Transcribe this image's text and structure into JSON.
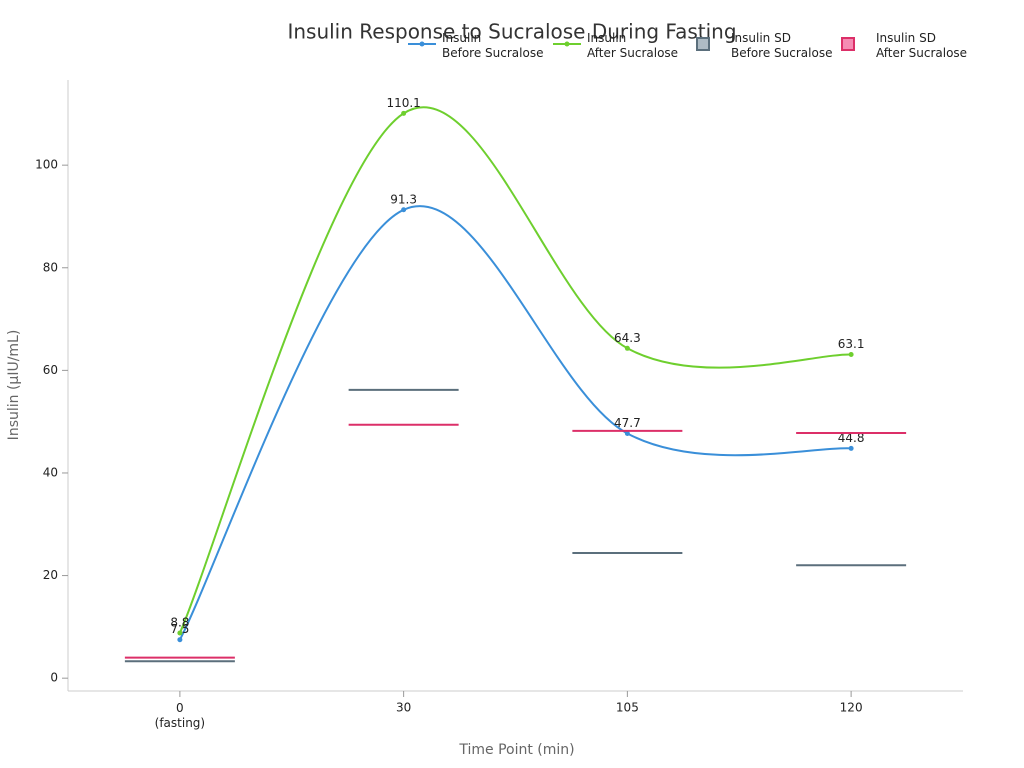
{
  "chart_data": {
    "type": "line",
    "title": "Insulin Response to Sucralose During Fasting",
    "x_label": "Time Point (min)",
    "y_label": "Insulin (µIU/mL)",
    "categories": [
      "0\n(fasting)",
      "30",
      "105",
      "120"
    ],
    "ylim": [
      -2.5,
      116.6
    ],
    "yticks": [
      0,
      20,
      40,
      60,
      80,
      100
    ],
    "series": [
      {
        "name": "Insulin\nBefore Sucralose",
        "type": "line",
        "color": "#3a8fd9",
        "values": [
          7.5,
          91.3,
          47.7,
          44.8
        ]
      },
      {
        "name": "Insulin\nAfter Sucralose",
        "type": "line",
        "color": "#6ecf2e",
        "values": [
          8.8,
          110.1,
          64.3,
          63.1
        ]
      },
      {
        "name": "Insulin SD\nBefore Sucralose",
        "type": "hline",
        "color": "#5b6f7c",
        "fill": "#aebbc4",
        "values": [
          3.3,
          56.2,
          24.4,
          22.0
        ]
      },
      {
        "name": "Insulin SD\nAfter Sucralose",
        "type": "hline",
        "color": "#dc2f68",
        "fill": "#f58bb3",
        "values": [
          4.0,
          49.4,
          48.2,
          47.8
        ]
      }
    ]
  }
}
